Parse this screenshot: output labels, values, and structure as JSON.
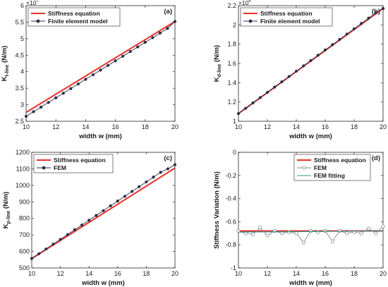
{
  "chart_data": [
    {
      "id": "a",
      "type": "line",
      "panel_label": "(a)",
      "xlabel": "width w (mm)",
      "ylabel_main": "K",
      "ylabel_sub": "t-line",
      "ylabel_unit": "(N/m)",
      "exponent_base": "×10",
      "exponent_power": "7",
      "xlim": [
        10,
        20
      ],
      "ylim": [
        2.5,
        6
      ],
      "x_ticks": [
        10,
        12,
        14,
        16,
        18,
        20
      ],
      "y_ticks": [
        2.5,
        3,
        3.5,
        4,
        4.5,
        5,
        5.5,
        6
      ],
      "y_tick_labels": [
        "2.5",
        "3",
        "3.5",
        "4",
        "4.5",
        "5",
        "5.5",
        "6"
      ],
      "legend_position": "top-left",
      "grid": false,
      "series": [
        {
          "name": "Stiffness equation",
          "style": "line",
          "color": "#e8312a",
          "x": [
            10,
            20
          ],
          "y": [
            2.77,
            5.52
          ]
        },
        {
          "name": "Finite element model",
          "style": "line-marker",
          "color": "#2b2f4a",
          "x": [
            10,
            10.5,
            11,
            11.5,
            12,
            12.5,
            13,
            13.5,
            14,
            14.5,
            15,
            15.5,
            16,
            16.5,
            17,
            17.5,
            18,
            18.5,
            19,
            19.5,
            20
          ],
          "y": [
            2.65,
            2.79,
            2.93,
            3.07,
            3.21,
            3.35,
            3.49,
            3.63,
            3.77,
            3.91,
            4.05,
            4.19,
            4.33,
            4.47,
            4.61,
            4.75,
            4.89,
            5.03,
            5.17,
            5.31,
            5.52
          ]
        }
      ]
    },
    {
      "id": "b",
      "type": "line",
      "panel_label": "(b)",
      "xlabel": "width w (mm)",
      "ylabel_main": "K",
      "ylabel_sub": "d-line",
      "ylabel_unit": "(N/m)",
      "exponent_base": "×10",
      "exponent_power": "4",
      "xlim": [
        10,
        20
      ],
      "ylim": [
        1,
        2.2
      ],
      "x_ticks": [
        10,
        12,
        14,
        16,
        18,
        20
      ],
      "y_ticks": [
        1,
        1.2,
        1.4,
        1.6,
        1.8,
        2,
        2.2
      ],
      "y_tick_labels": [
        "1",
        "1.2",
        "1.4",
        "1.6",
        "1.8",
        "2",
        "2.2"
      ],
      "legend_position": "top-left",
      "grid": false,
      "series": [
        {
          "name": "Stiffness equation",
          "style": "line",
          "color": "#e8312a",
          "x": [
            10,
            20
          ],
          "y": [
            1.08,
            2.17
          ]
        },
        {
          "name": "Finite element model",
          "style": "line-marker",
          "color": "#2b2f4a",
          "x": [
            10,
            10.5,
            11,
            11.5,
            12,
            12.5,
            13,
            13.5,
            14,
            14.5,
            15,
            15.5,
            16,
            16.5,
            17,
            17.5,
            18,
            18.5,
            19,
            19.5,
            20
          ],
          "y": [
            1.08,
            1.135,
            1.19,
            1.245,
            1.3,
            1.355,
            1.41,
            1.465,
            1.52,
            1.575,
            1.63,
            1.685,
            1.74,
            1.795,
            1.85,
            1.905,
            1.96,
            2.015,
            2.07,
            2.125,
            2.17
          ]
        }
      ]
    },
    {
      "id": "c",
      "type": "line",
      "panel_label": "(c)",
      "xlabel": "width w (mm)",
      "ylabel_main": "K",
      "ylabel_sub": "p-line",
      "ylabel_unit": "(N/m)",
      "xlim": [
        10,
        20
      ],
      "ylim": [
        500,
        1200
      ],
      "x_ticks": [
        10,
        12,
        14,
        16,
        18,
        20
      ],
      "y_ticks": [
        500,
        600,
        700,
        800,
        900,
        1000,
        1100,
        1200
      ],
      "y_tick_labels": [
        "500",
        "600",
        "700",
        "800",
        "900",
        "1000",
        "1100",
        "1200"
      ],
      "legend_position": "top-left",
      "grid": false,
      "series": [
        {
          "name": "Stiffness equation",
          "style": "line",
          "color": "#e8312a",
          "x": [
            10,
            20
          ],
          "y": [
            557,
            1105
          ]
        },
        {
          "name": "FEM",
          "style": "line-marker",
          "color": "#2b2f4a",
          "x": [
            10,
            10.5,
            11,
            11.5,
            12,
            12.5,
            13,
            13.5,
            14,
            14.5,
            15,
            15.5,
            16,
            16.5,
            17,
            17.5,
            18,
            18.5,
            19,
            19.5,
            20
          ],
          "y": [
            557,
            586,
            615,
            644,
            673,
            702,
            731,
            760,
            789,
            818,
            847,
            876,
            905,
            934,
            963,
            992,
            1021,
            1050,
            1079,
            1100,
            1125
          ]
        }
      ]
    },
    {
      "id": "d",
      "type": "line",
      "panel_label": "(d)",
      "xlabel": "width w (mm)",
      "ylabel_main": "Stiffness Variation (N/m)",
      "xlim": [
        10,
        20
      ],
      "ylim": [
        -1,
        0
      ],
      "x_ticks": [
        10,
        12,
        14,
        16,
        18,
        20
      ],
      "y_ticks": [
        -1,
        -0.8,
        -0.6,
        -0.4,
        -0.2,
        0
      ],
      "y_tick_labels": [
        "-1",
        "-0.8",
        "-0.6",
        "-0.4",
        "-0.2",
        "0"
      ],
      "legend_position": "top-right",
      "grid": false,
      "series": [
        {
          "name": "Stiffness equation",
          "style": "line",
          "color": "#e8312a",
          "x": [
            10,
            20
          ],
          "y": [
            -0.68,
            -0.68
          ]
        },
        {
          "name": "FEM",
          "style": "line-open-marker",
          "color": "#8a8a8a",
          "x": [
            10,
            10.5,
            11,
            11.5,
            12,
            12.5,
            13,
            13.5,
            14,
            14.5,
            15,
            15.5,
            16,
            16.5,
            17,
            17.5,
            18,
            18.5,
            19,
            19.5,
            20
          ],
          "y": [
            -0.68,
            -0.7,
            -0.71,
            -0.65,
            -0.72,
            -0.68,
            -0.7,
            -0.69,
            -0.7,
            -0.78,
            -0.68,
            -0.69,
            -0.68,
            -0.77,
            -0.68,
            -0.7,
            -0.69,
            -0.7,
            -0.66,
            -0.7,
            -0.64
          ]
        },
        {
          "name": "FEM fitting",
          "style": "line",
          "color": "#3a8f8f",
          "x": [
            10,
            20
          ],
          "y": [
            -0.69,
            -0.68
          ]
        }
      ]
    }
  ]
}
